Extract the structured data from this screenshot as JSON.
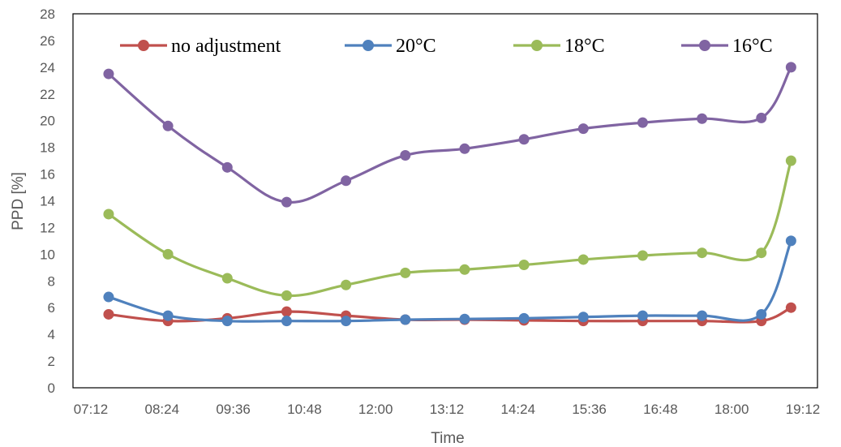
{
  "chart_data": {
    "type": "line",
    "xlabel": "Time",
    "ylabel": "PPD [%]",
    "xlim": [
      "07:12",
      "19:12"
    ],
    "ylim": [
      0,
      28
    ],
    "x_ticks": [
      "07:12",
      "08:24",
      "09:36",
      "10:48",
      "12:00",
      "13:12",
      "14:24",
      "15:36",
      "16:48",
      "18:00",
      "19:12"
    ],
    "y_ticks": [
      "0",
      "2",
      "4",
      "6",
      "8",
      "10",
      "12",
      "14",
      "16",
      "18",
      "20",
      "22",
      "24",
      "26",
      "28"
    ],
    "x": [
      "07:30",
      "08:30",
      "09:30",
      "10:30",
      "11:30",
      "12:30",
      "13:30",
      "14:30",
      "15:30",
      "16:30",
      "17:30",
      "18:30",
      "19:00"
    ],
    "legend_position": "top",
    "grid": false,
    "series": [
      {
        "name": "no adjustment",
        "color": "#C0504D",
        "values": [
          5.5,
          5.0,
          5.2,
          5.7,
          5.4,
          5.1,
          5.1,
          5.05,
          5.0,
          5.0,
          5.0,
          5.0,
          6.0
        ]
      },
      {
        "name": "20°C",
        "color": "#4F81BD",
        "values": [
          6.8,
          5.4,
          5.0,
          5.0,
          5.0,
          5.1,
          5.15,
          5.2,
          5.3,
          5.4,
          5.4,
          5.5,
          11.0
        ]
      },
      {
        "name": "18°C",
        "color": "#9BBB59",
        "values": [
          13.0,
          10.0,
          8.2,
          6.9,
          7.7,
          8.6,
          8.85,
          9.2,
          9.6,
          9.9,
          10.1,
          10.1,
          17.0
        ]
      },
      {
        "name": "16°C",
        "color": "#8064A2",
        "values": [
          23.5,
          19.6,
          16.5,
          13.9,
          15.5,
          17.4,
          17.9,
          18.6,
          19.4,
          19.85,
          20.15,
          20.2,
          24.0
        ]
      }
    ]
  }
}
